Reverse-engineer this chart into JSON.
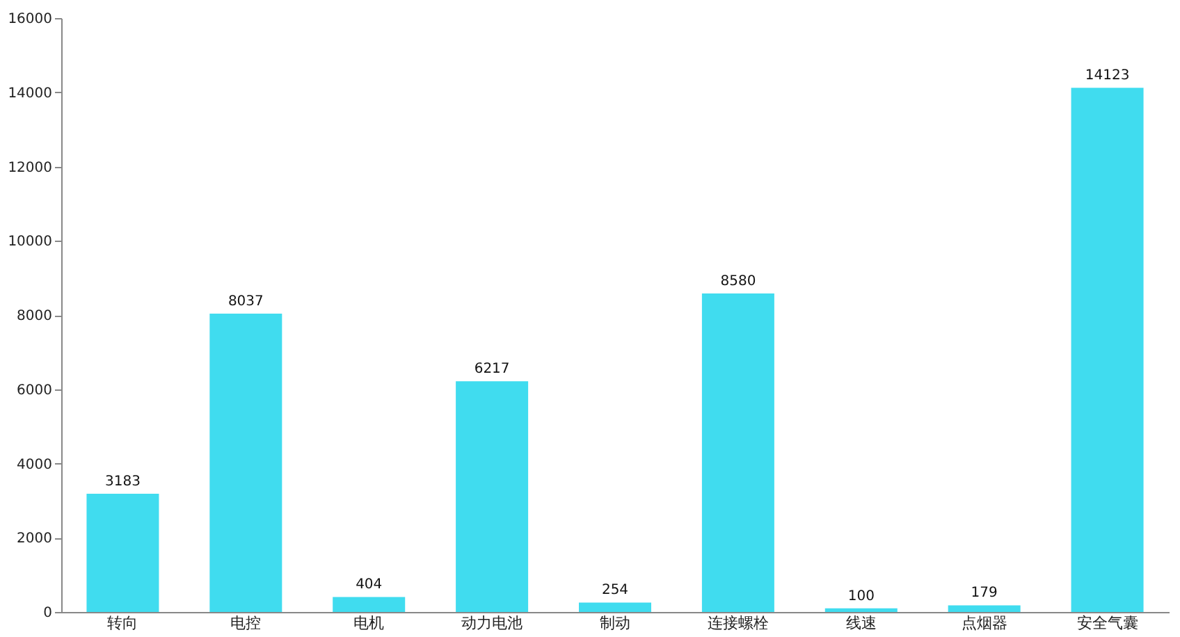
{
  "chart_data": {
    "type": "bar",
    "categories": [
      "转向",
      "电控",
      "电机",
      "动力电池",
      "制动",
      "连接螺栓",
      "线速",
      "点烟器",
      "安全气囊"
    ],
    "values": [
      3183,
      8037,
      404,
      6217,
      254,
      8580,
      100,
      179,
      14123
    ],
    "color": "#40dcef",
    "ylim": [
      0,
      16000
    ],
    "yticks": [
      0,
      2000,
      4000,
      6000,
      8000,
      10000,
      12000,
      14000,
      16000
    ],
    "grid": false,
    "data_labels": true
  }
}
